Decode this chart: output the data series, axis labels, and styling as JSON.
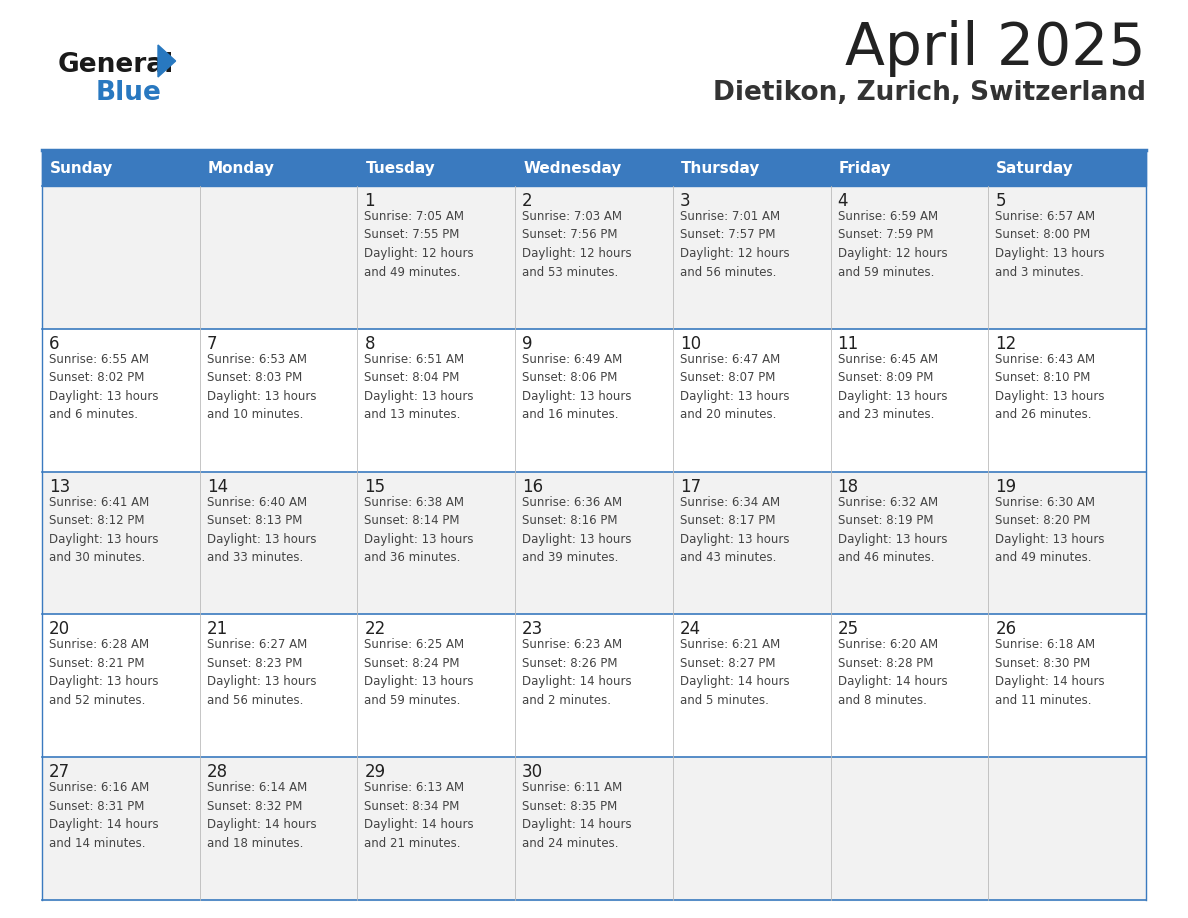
{
  "title": "April 2025",
  "subtitle": "Dietikon, Zurich, Switzerland",
  "days_of_week": [
    "Sunday",
    "Monday",
    "Tuesday",
    "Wednesday",
    "Thursday",
    "Friday",
    "Saturday"
  ],
  "header_bg": "#3a7abf",
  "header_text": "#ffffff",
  "row_bg_light": "#f2f2f2",
  "row_bg_white": "#ffffff",
  "separator_color": "#3a7abf",
  "day_number_color": "#222222",
  "text_color": "#444444",
  "title_color": "#222222",
  "subtitle_color": "#333333",
  "logo_general_color": "#1a1a1a",
  "logo_blue_color": "#2878c0",
  "calendar_data": [
    [
      {
        "day": null,
        "info": null
      },
      {
        "day": null,
        "info": null
      },
      {
        "day": 1,
        "info": "Sunrise: 7:05 AM\nSunset: 7:55 PM\nDaylight: 12 hours\nand 49 minutes."
      },
      {
        "day": 2,
        "info": "Sunrise: 7:03 AM\nSunset: 7:56 PM\nDaylight: 12 hours\nand 53 minutes."
      },
      {
        "day": 3,
        "info": "Sunrise: 7:01 AM\nSunset: 7:57 PM\nDaylight: 12 hours\nand 56 minutes."
      },
      {
        "day": 4,
        "info": "Sunrise: 6:59 AM\nSunset: 7:59 PM\nDaylight: 12 hours\nand 59 minutes."
      },
      {
        "day": 5,
        "info": "Sunrise: 6:57 AM\nSunset: 8:00 PM\nDaylight: 13 hours\nand 3 minutes."
      }
    ],
    [
      {
        "day": 6,
        "info": "Sunrise: 6:55 AM\nSunset: 8:02 PM\nDaylight: 13 hours\nand 6 minutes."
      },
      {
        "day": 7,
        "info": "Sunrise: 6:53 AM\nSunset: 8:03 PM\nDaylight: 13 hours\nand 10 minutes."
      },
      {
        "day": 8,
        "info": "Sunrise: 6:51 AM\nSunset: 8:04 PM\nDaylight: 13 hours\nand 13 minutes."
      },
      {
        "day": 9,
        "info": "Sunrise: 6:49 AM\nSunset: 8:06 PM\nDaylight: 13 hours\nand 16 minutes."
      },
      {
        "day": 10,
        "info": "Sunrise: 6:47 AM\nSunset: 8:07 PM\nDaylight: 13 hours\nand 20 minutes."
      },
      {
        "day": 11,
        "info": "Sunrise: 6:45 AM\nSunset: 8:09 PM\nDaylight: 13 hours\nand 23 minutes."
      },
      {
        "day": 12,
        "info": "Sunrise: 6:43 AM\nSunset: 8:10 PM\nDaylight: 13 hours\nand 26 minutes."
      }
    ],
    [
      {
        "day": 13,
        "info": "Sunrise: 6:41 AM\nSunset: 8:12 PM\nDaylight: 13 hours\nand 30 minutes."
      },
      {
        "day": 14,
        "info": "Sunrise: 6:40 AM\nSunset: 8:13 PM\nDaylight: 13 hours\nand 33 minutes."
      },
      {
        "day": 15,
        "info": "Sunrise: 6:38 AM\nSunset: 8:14 PM\nDaylight: 13 hours\nand 36 minutes."
      },
      {
        "day": 16,
        "info": "Sunrise: 6:36 AM\nSunset: 8:16 PM\nDaylight: 13 hours\nand 39 minutes."
      },
      {
        "day": 17,
        "info": "Sunrise: 6:34 AM\nSunset: 8:17 PM\nDaylight: 13 hours\nand 43 minutes."
      },
      {
        "day": 18,
        "info": "Sunrise: 6:32 AM\nSunset: 8:19 PM\nDaylight: 13 hours\nand 46 minutes."
      },
      {
        "day": 19,
        "info": "Sunrise: 6:30 AM\nSunset: 8:20 PM\nDaylight: 13 hours\nand 49 minutes."
      }
    ],
    [
      {
        "day": 20,
        "info": "Sunrise: 6:28 AM\nSunset: 8:21 PM\nDaylight: 13 hours\nand 52 minutes."
      },
      {
        "day": 21,
        "info": "Sunrise: 6:27 AM\nSunset: 8:23 PM\nDaylight: 13 hours\nand 56 minutes."
      },
      {
        "day": 22,
        "info": "Sunrise: 6:25 AM\nSunset: 8:24 PM\nDaylight: 13 hours\nand 59 minutes."
      },
      {
        "day": 23,
        "info": "Sunrise: 6:23 AM\nSunset: 8:26 PM\nDaylight: 14 hours\nand 2 minutes."
      },
      {
        "day": 24,
        "info": "Sunrise: 6:21 AM\nSunset: 8:27 PM\nDaylight: 14 hours\nand 5 minutes."
      },
      {
        "day": 25,
        "info": "Sunrise: 6:20 AM\nSunset: 8:28 PM\nDaylight: 14 hours\nand 8 minutes."
      },
      {
        "day": 26,
        "info": "Sunrise: 6:18 AM\nSunset: 8:30 PM\nDaylight: 14 hours\nand 11 minutes."
      }
    ],
    [
      {
        "day": 27,
        "info": "Sunrise: 6:16 AM\nSunset: 8:31 PM\nDaylight: 14 hours\nand 14 minutes."
      },
      {
        "day": 28,
        "info": "Sunrise: 6:14 AM\nSunset: 8:32 PM\nDaylight: 14 hours\nand 18 minutes."
      },
      {
        "day": 29,
        "info": "Sunrise: 6:13 AM\nSunset: 8:34 PM\nDaylight: 14 hours\nand 21 minutes."
      },
      {
        "day": 30,
        "info": "Sunrise: 6:11 AM\nSunset: 8:35 PM\nDaylight: 14 hours\nand 24 minutes."
      },
      {
        "day": null,
        "info": null
      },
      {
        "day": null,
        "info": null
      },
      {
        "day": null,
        "info": null
      }
    ]
  ]
}
